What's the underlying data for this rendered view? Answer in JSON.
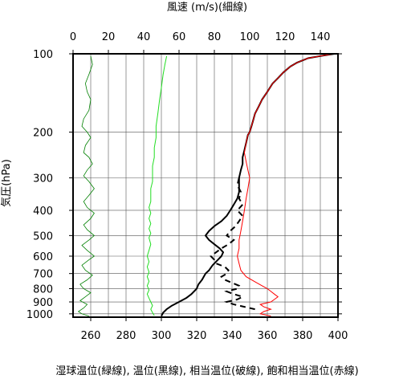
{
  "chart_data": {
    "type": "line",
    "top_axis": {
      "label": "風速 (m/s)(細線)",
      "range": [
        0,
        150
      ],
      "ticks": [
        0,
        20,
        40,
        60,
        80,
        100,
        120,
        140
      ]
    },
    "bottom_axis": {
      "label": "湿球温位(緑線), 温位(黒線), 相当温位(破線), 飽和相当温位(赤線)",
      "range": [
        250,
        400
      ],
      "ticks": [
        260,
        280,
        300,
        320,
        340,
        360,
        380,
        400
      ]
    },
    "y_axis": {
      "label": "気圧(hPa)",
      "scale": "log",
      "inverted": true,
      "range": [
        1030,
        100
      ],
      "ticks": [
        100,
        200,
        300,
        400,
        500,
        600,
        700,
        800,
        900,
        1000
      ]
    },
    "grid": true,
    "series": [
      {
        "name": "風速 (m/s)(細線)",
        "axis": "top",
        "color": "#008000",
        "style": "thin",
        "points": [
          [
            9,
            1020
          ],
          [
            5,
            1000
          ],
          [
            3,
            980
          ],
          [
            6,
            950
          ],
          [
            8,
            920
          ],
          [
            4,
            890
          ],
          [
            7,
            860
          ],
          [
            10,
            830
          ],
          [
            6,
            800
          ],
          [
            4,
            770
          ],
          [
            8,
            740
          ],
          [
            11,
            710
          ],
          [
            7,
            680
          ],
          [
            5,
            650
          ],
          [
            9,
            620
          ],
          [
            12,
            600
          ],
          [
            8,
            570
          ],
          [
            5,
            545
          ],
          [
            9,
            520
          ],
          [
            12,
            500
          ],
          [
            8,
            475
          ],
          [
            6,
            455
          ],
          [
            10,
            430
          ],
          [
            12,
            410
          ],
          [
            8,
            390
          ],
          [
            6,
            370
          ],
          [
            9,
            350
          ],
          [
            12,
            330
          ],
          [
            9,
            310
          ],
          [
            6,
            295
          ],
          [
            8,
            280
          ],
          [
            11,
            265
          ],
          [
            9,
            250
          ],
          [
            6,
            240
          ],
          [
            7,
            225
          ],
          [
            10,
            210
          ],
          [
            8,
            200
          ],
          [
            5,
            190
          ],
          [
            6,
            178
          ],
          [
            9,
            165
          ],
          [
            10,
            150
          ],
          [
            8,
            140
          ],
          [
            7,
            130
          ],
          [
            9,
            120
          ],
          [
            11,
            110
          ],
          [
            10,
            102
          ]
        ]
      },
      {
        "name": "湿球温位(緑線)",
        "axis": "bottom",
        "color": "#22dd22",
        "style": "solid",
        "points": [
          [
            296,
            1015
          ],
          [
            295,
            990
          ],
          [
            294,
            960
          ],
          [
            295,
            930
          ],
          [
            294,
            900
          ],
          [
            293,
            870
          ],
          [
            292,
            840
          ],
          [
            293,
            810
          ],
          [
            292,
            780
          ],
          [
            293,
            750
          ],
          [
            292,
            720
          ],
          [
            293,
            690
          ],
          [
            292,
            660
          ],
          [
            293,
            630
          ],
          [
            292,
            600
          ],
          [
            293,
            570
          ],
          [
            294,
            540
          ],
          [
            293,
            510
          ],
          [
            294,
            490
          ],
          [
            293,
            470
          ],
          [
            294,
            450
          ],
          [
            293,
            430
          ],
          [
            294,
            410
          ],
          [
            293,
            390
          ],
          [
            294,
            370
          ],
          [
            294,
            350
          ],
          [
            294,
            330
          ],
          [
            295,
            310
          ],
          [
            295,
            290
          ],
          [
            295,
            270
          ],
          [
            296,
            250
          ],
          [
            296,
            230
          ],
          [
            297,
            210
          ],
          [
            297,
            190
          ],
          [
            298,
            170
          ],
          [
            299,
            150
          ],
          [
            300,
            135
          ],
          [
            301,
            120
          ],
          [
            302,
            110
          ],
          [
            303,
            102
          ]
        ]
      },
      {
        "name": "温位(黒線)",
        "axis": "bottom",
        "color": "#000000",
        "style": "thick",
        "points": [
          [
            300,
            1020
          ],
          [
            301,
            990
          ],
          [
            303,
            960
          ],
          [
            306,
            930
          ],
          [
            310,
            900
          ],
          [
            314,
            870
          ],
          [
            317,
            840
          ],
          [
            320,
            800
          ],
          [
            321,
            770
          ],
          [
            323,
            740
          ],
          [
            324,
            720
          ],
          [
            325,
            700
          ],
          [
            327,
            680
          ],
          [
            329,
            650
          ],
          [
            332,
            620
          ],
          [
            334,
            600
          ],
          [
            335,
            580
          ],
          [
            333,
            560
          ],
          [
            330,
            540
          ],
          [
            327,
            520
          ],
          [
            325,
            500
          ],
          [
            327,
            480
          ],
          [
            330,
            460
          ],
          [
            334,
            440
          ],
          [
            337,
            420
          ],
          [
            339,
            400
          ],
          [
            341,
            380
          ],
          [
            343,
            360
          ],
          [
            344,
            340
          ],
          [
            344,
            320
          ],
          [
            344,
            300
          ],
          [
            345,
            280
          ],
          [
            346,
            265
          ],
          [
            346,
            250
          ],
          [
            347,
            235
          ],
          [
            348,
            220
          ],
          [
            349,
            205
          ],
          [
            350,
            200
          ],
          [
            351,
            190
          ],
          [
            352,
            180
          ],
          [
            353,
            170
          ],
          [
            355,
            160
          ],
          [
            357,
            150
          ],
          [
            360,
            140
          ],
          [
            363,
            130
          ],
          [
            366,
            124
          ],
          [
            369,
            118
          ],
          [
            373,
            112
          ],
          [
            377,
            108
          ],
          [
            383,
            104
          ],
          [
            390,
            102
          ],
          [
            398,
            100
          ]
        ]
      },
      {
        "name": "相当温位(破線)",
        "axis": "bottom",
        "color": "#000000",
        "style": "dashed",
        "points": [
          [
            353,
            960
          ],
          [
            347,
            940
          ],
          [
            341,
            920
          ],
          [
            337,
            900
          ],
          [
            343,
            880
          ],
          [
            346,
            860
          ],
          [
            341,
            840
          ],
          [
            337,
            820
          ],
          [
            343,
            800
          ],
          [
            344,
            780
          ],
          [
            340,
            760
          ],
          [
            336,
            740
          ],
          [
            334,
            720
          ],
          [
            337,
            700
          ],
          [
            338,
            680
          ],
          [
            336,
            660
          ],
          [
            331,
            640
          ],
          [
            330,
            620
          ],
          [
            328,
            600
          ],
          [
            331,
            580
          ],
          [
            334,
            560
          ],
          [
            338,
            540
          ],
          [
            341,
            520
          ],
          [
            337,
            500
          ],
          [
            339,
            480
          ],
          [
            342,
            460
          ],
          [
            344,
            440
          ],
          [
            346,
            420
          ],
          [
            343,
            400
          ],
          [
            346,
            380
          ],
          [
            344,
            360
          ],
          [
            345,
            340
          ],
          [
            343,
            320
          ],
          [
            344,
            300
          ]
        ]
      },
      {
        "name": "飽和相当温位(赤線)",
        "axis": "bottom",
        "color": "#ff0000",
        "style": "solid",
        "points": [
          [
            362,
            1020
          ],
          [
            356,
            1000
          ],
          [
            358,
            980
          ],
          [
            362,
            960
          ],
          [
            358,
            940
          ],
          [
            356,
            920
          ],
          [
            362,
            900
          ],
          [
            364,
            880
          ],
          [
            366,
            860
          ],
          [
            364,
            840
          ],
          [
            362,
            820
          ],
          [
            360,
            800
          ],
          [
            354,
            760
          ],
          [
            348,
            720
          ],
          [
            345,
            680
          ],
          [
            344,
            640
          ],
          [
            343,
            600
          ],
          [
            344,
            560
          ],
          [
            344,
            520
          ],
          [
            345,
            480
          ],
          [
            346,
            440
          ],
          [
            347,
            400
          ],
          [
            348,
            360
          ],
          [
            349,
            330
          ],
          [
            350,
            300
          ],
          [
            349,
            280
          ],
          [
            348,
            260
          ],
          [
            347,
            240
          ],
          [
            348,
            220
          ],
          [
            349,
            205
          ],
          [
            350,
            200
          ],
          [
            351,
            190
          ],
          [
            352,
            180
          ],
          [
            353,
            170
          ],
          [
            355,
            160
          ],
          [
            357,
            150
          ],
          [
            360,
            140
          ],
          [
            363,
            130
          ],
          [
            366,
            124
          ],
          [
            369,
            118
          ],
          [
            373,
            112
          ],
          [
            377,
            108
          ],
          [
            383,
            104
          ],
          [
            390,
            102
          ],
          [
            398,
            100
          ]
        ]
      }
    ]
  }
}
